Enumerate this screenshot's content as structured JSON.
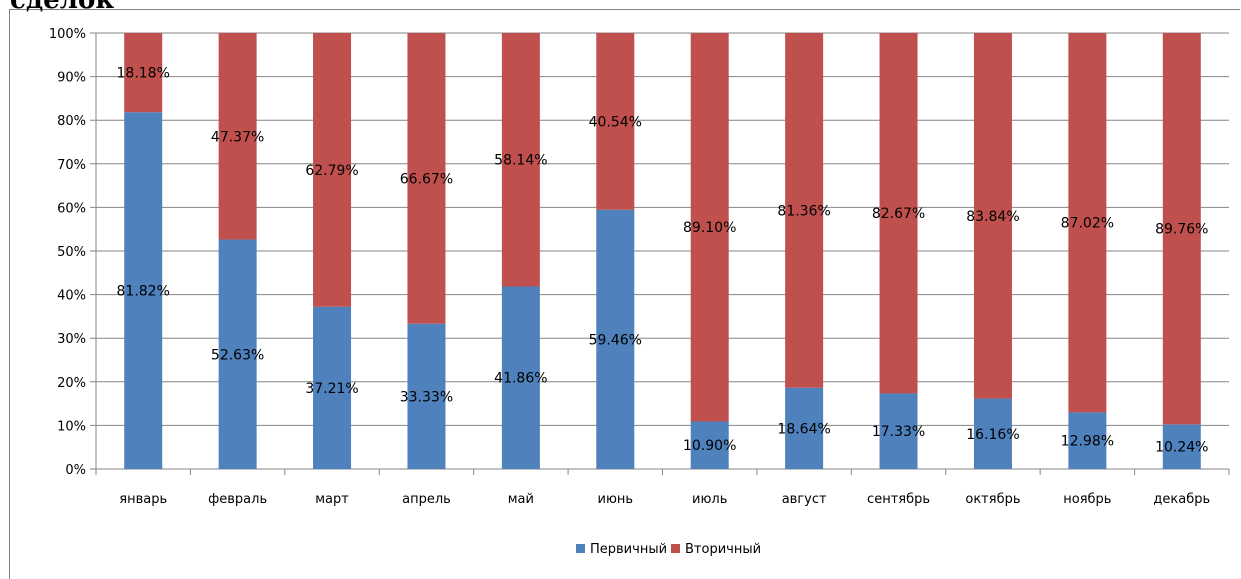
{
  "heading_fragment": "сделок",
  "chart_data": {
    "type": "bar",
    "stacked": true,
    "percent_stacked": true,
    "categories": [
      "январь",
      "февраль",
      "март",
      "апрель",
      "май",
      "июнь",
      "июль",
      "август",
      "сентябрь",
      "октябрь",
      "ноябрь",
      "декабрь"
    ],
    "series": [
      {
        "name": "Первичный",
        "color": "#4F81BD",
        "values": [
          81.82,
          52.63,
          37.21,
          33.33,
          41.86,
          59.46,
          10.9,
          18.64,
          17.33,
          16.16,
          12.98,
          10.24
        ],
        "labels": [
          "81.82%",
          "52.63%",
          "37.21%",
          "33.33%",
          "41.86%",
          "59.46%",
          "10.90%",
          "18.64%",
          "17.33%",
          "16.16%",
          "12.98%",
          "10.24%"
        ]
      },
      {
        "name": "Вторичный",
        "color": "#C0504D",
        "values": [
          18.18,
          47.37,
          62.79,
          66.67,
          58.14,
          40.54,
          89.1,
          81.36,
          82.67,
          83.84,
          87.02,
          89.76
        ],
        "labels": [
          "18.18%",
          "47.37%",
          "62.79%",
          "66.67%",
          "58.14%",
          "40.54%",
          "89.10%",
          "81.36%",
          "82.67%",
          "83.84%",
          "87.02%",
          "89.76%"
        ]
      }
    ],
    "ylim": [
      0,
      100
    ],
    "yticks": [
      "0%",
      "10%",
      "20%",
      "30%",
      "40%",
      "50%",
      "60%",
      "70%",
      "80%",
      "90%",
      "100%"
    ],
    "grid": true,
    "legend": "bottom",
    "title": "",
    "xlabel": "",
    "ylabel": ""
  }
}
